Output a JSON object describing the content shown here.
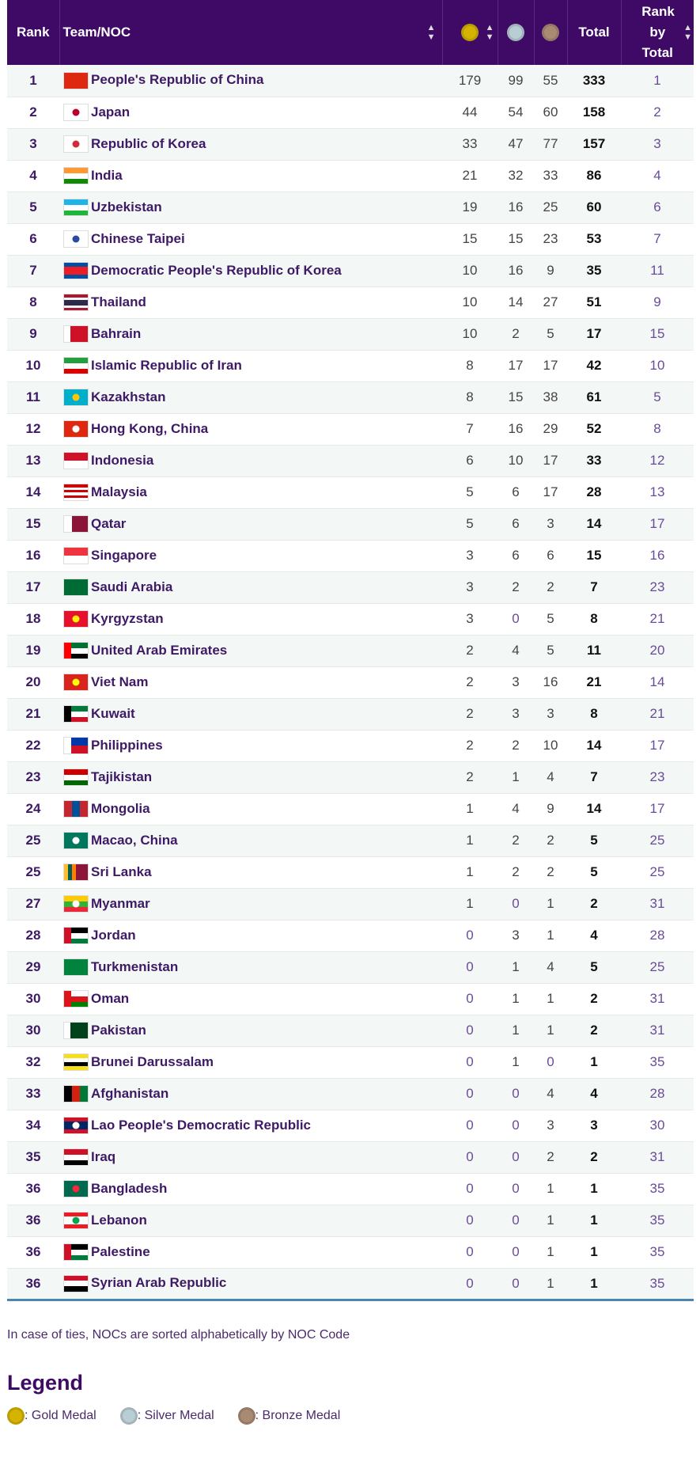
{
  "header": {
    "rank": "Rank",
    "team": "Team/NOC",
    "total": "Total",
    "rank_by_total": "Rank by Total",
    "medal_icons": [
      "gold-medal-icon",
      "silver-medal-icon",
      "bronze-medal-icon"
    ]
  },
  "colors": {
    "header_bg": "#3e0a66",
    "gold": "#d4b400",
    "silver": "#b9cdd4",
    "bronze": "#a98a72",
    "bottom_border": "#4a86b0"
  },
  "rows": [
    {
      "rank": "1",
      "team": "People's Republic of China",
      "gold": "179",
      "silver": "99",
      "bronze": "55",
      "total": "333",
      "rank_by_total": "1",
      "flag": {
        "dir": "h",
        "colors": [
          "#de2910"
        ]
      }
    },
    {
      "rank": "2",
      "team": "Japan",
      "gold": "44",
      "silver": "54",
      "bronze": "60",
      "total": "158",
      "rank_by_total": "2",
      "flag": {
        "dir": "h",
        "colors": [
          "#ffffff"
        ],
        "dot": "#bc002d"
      }
    },
    {
      "rank": "3",
      "team": "Republic of Korea",
      "gold": "33",
      "silver": "47",
      "bronze": "77",
      "total": "157",
      "rank_by_total": "3",
      "flag": {
        "dir": "h",
        "colors": [
          "#ffffff"
        ],
        "dot": "#cd2e3a"
      }
    },
    {
      "rank": "4",
      "team": "India",
      "gold": "21",
      "silver": "32",
      "bronze": "33",
      "total": "86",
      "rank_by_total": "4",
      "flag": {
        "dir": "h",
        "colors": [
          "#ff9933",
          "#ffffff",
          "#138808"
        ]
      }
    },
    {
      "rank": "5",
      "team": "Uzbekistan",
      "gold": "19",
      "silver": "16",
      "bronze": "25",
      "total": "60",
      "rank_by_total": "6",
      "flag": {
        "dir": "h",
        "colors": [
          "#1eb5e6",
          "#ffffff",
          "#1eb53a"
        ]
      }
    },
    {
      "rank": "6",
      "team": "Chinese Taipei",
      "gold": "15",
      "silver": "15",
      "bronze": "23",
      "total": "53",
      "rank_by_total": "7",
      "flag": {
        "dir": "h",
        "colors": [
          "#ffffff"
        ],
        "dot": "#2a4aa0"
      }
    },
    {
      "rank": "7",
      "team": "Democratic People's Republic of Korea",
      "gold": "10",
      "silver": "16",
      "bronze": "9",
      "total": "35",
      "rank_by_total": "11",
      "flag": {
        "dir": "h",
        "colors": [
          "#024fa2",
          "#ed1c27",
          "#ed1c27",
          "#024fa2"
        ]
      }
    },
    {
      "rank": "8",
      "team": "Thailand",
      "gold": "10",
      "silver": "14",
      "bronze": "27",
      "total": "51",
      "rank_by_total": "9",
      "flag": {
        "dir": "h",
        "colors": [
          "#a51931",
          "#f4f5f8",
          "#2d2a4a",
          "#2d2a4a",
          "#f4f5f8",
          "#a51931"
        ]
      }
    },
    {
      "rank": "9",
      "team": "Bahrain",
      "gold": "10",
      "silver": "2",
      "bronze": "5",
      "total": "17",
      "rank_by_total": "15",
      "flag": {
        "dir": "v",
        "colors": [
          "#ffffff",
          "#ce1126",
          "#ce1126",
          "#ce1126"
        ]
      }
    },
    {
      "rank": "10",
      "team": "Islamic Republic of Iran",
      "gold": "8",
      "silver": "17",
      "bronze": "17",
      "total": "42",
      "rank_by_total": "10",
      "flag": {
        "dir": "h",
        "colors": [
          "#239f40",
          "#ffffff",
          "#da0000"
        ]
      }
    },
    {
      "rank": "11",
      "team": "Kazakhstan",
      "gold": "8",
      "silver": "15",
      "bronze": "38",
      "total": "61",
      "rank_by_total": "5",
      "flag": {
        "dir": "h",
        "colors": [
          "#00afca"
        ],
        "dot": "#fec50c"
      }
    },
    {
      "rank": "12",
      "team": "Hong Kong, China",
      "gold": "7",
      "silver": "16",
      "bronze": "29",
      "total": "52",
      "rank_by_total": "8",
      "flag": {
        "dir": "h",
        "colors": [
          "#de2910"
        ],
        "dot": "#ffffff"
      }
    },
    {
      "rank": "13",
      "team": "Indonesia",
      "gold": "6",
      "silver": "10",
      "bronze": "17",
      "total": "33",
      "rank_by_total": "12",
      "flag": {
        "dir": "h",
        "colors": [
          "#ce1126",
          "#ffffff"
        ]
      }
    },
    {
      "rank": "14",
      "team": "Malaysia",
      "gold": "5",
      "silver": "6",
      "bronze": "17",
      "total": "28",
      "rank_by_total": "13",
      "flag": {
        "dir": "h",
        "colors": [
          "#cc0001",
          "#ffffff",
          "#cc0001",
          "#ffffff",
          "#cc0001",
          "#ffffff"
        ]
      }
    },
    {
      "rank": "15",
      "team": "Qatar",
      "gold": "5",
      "silver": "6",
      "bronze": "3",
      "total": "14",
      "rank_by_total": "17",
      "flag": {
        "dir": "v",
        "colors": [
          "#ffffff",
          "#8a1538",
          "#8a1538"
        ]
      }
    },
    {
      "rank": "16",
      "team": "Singapore",
      "gold": "3",
      "silver": "6",
      "bronze": "6",
      "total": "15",
      "rank_by_total": "16",
      "flag": {
        "dir": "h",
        "colors": [
          "#ef3340",
          "#ffffff"
        ]
      }
    },
    {
      "rank": "17",
      "team": "Saudi Arabia",
      "gold": "3",
      "silver": "2",
      "bronze": "2",
      "total": "7",
      "rank_by_total": "23",
      "flag": {
        "dir": "h",
        "colors": [
          "#006c35"
        ]
      }
    },
    {
      "rank": "18",
      "team": "Kyrgyzstan",
      "gold": "3",
      "silver": "0",
      "bronze": "5",
      "total": "8",
      "rank_by_total": "21",
      "flag": {
        "dir": "h",
        "colors": [
          "#e8112d"
        ],
        "dot": "#ffef00"
      }
    },
    {
      "rank": "19",
      "team": "United Arab Emirates",
      "gold": "2",
      "silver": "4",
      "bronze": "5",
      "total": "11",
      "rank_by_total": "20",
      "flag": {
        "dir": "h",
        "colors": [
          "#00732f",
          "#ffffff",
          "#000000"
        ],
        "hoist": "#ff0000"
      }
    },
    {
      "rank": "20",
      "team": "Viet Nam",
      "gold": "2",
      "silver": "3",
      "bronze": "16",
      "total": "21",
      "rank_by_total": "14",
      "flag": {
        "dir": "h",
        "colors": [
          "#da251d"
        ],
        "dot": "#ffff00"
      }
    },
    {
      "rank": "21",
      "team": "Kuwait",
      "gold": "2",
      "silver": "3",
      "bronze": "3",
      "total": "8",
      "rank_by_total": "21",
      "flag": {
        "dir": "h",
        "colors": [
          "#007a3d",
          "#ffffff",
          "#ce1126"
        ],
        "hoist": "#000000"
      }
    },
    {
      "rank": "22",
      "team": "Philippines",
      "gold": "2",
      "silver": "2",
      "bronze": "10",
      "total": "14",
      "rank_by_total": "17",
      "flag": {
        "dir": "h",
        "colors": [
          "#0038a8",
          "#ce1126"
        ],
        "hoist": "#ffffff"
      }
    },
    {
      "rank": "23",
      "team": "Tajikistan",
      "gold": "2",
      "silver": "1",
      "bronze": "4",
      "total": "7",
      "rank_by_total": "23",
      "flag": {
        "dir": "h",
        "colors": [
          "#cc0000",
          "#ffffff",
          "#006600"
        ]
      }
    },
    {
      "rank": "24",
      "team": "Mongolia",
      "gold": "1",
      "silver": "4",
      "bronze": "9",
      "total": "14",
      "rank_by_total": "17",
      "flag": {
        "dir": "v",
        "colors": [
          "#c4272f",
          "#015197",
          "#c4272f"
        ]
      }
    },
    {
      "rank": "25",
      "team": "Macao, China",
      "gold": "1",
      "silver": "2",
      "bronze": "2",
      "total": "5",
      "rank_by_total": "25",
      "flag": {
        "dir": "h",
        "colors": [
          "#00785e"
        ],
        "dot": "#ffffff"
      }
    },
    {
      "rank": "25",
      "team": "Sri Lanka",
      "gold": "1",
      "silver": "2",
      "bronze": "2",
      "total": "5",
      "rank_by_total": "25",
      "flag": {
        "dir": "v",
        "colors": [
          "#ffbe29",
          "#005f56",
          "#ff7f00",
          "#8d153a",
          "#8d153a",
          "#8d153a"
        ]
      }
    },
    {
      "rank": "27",
      "team": "Myanmar",
      "gold": "1",
      "silver": "0",
      "bronze": "1",
      "total": "2",
      "rank_by_total": "31",
      "flag": {
        "dir": "h",
        "colors": [
          "#fecb00",
          "#34b233",
          "#ea2839"
        ],
        "dot": "#ffffff"
      }
    },
    {
      "rank": "28",
      "team": "Jordan",
      "gold": "0",
      "silver": "3",
      "bronze": "1",
      "total": "4",
      "rank_by_total": "28",
      "flag": {
        "dir": "h",
        "colors": [
          "#000000",
          "#ffffff",
          "#007a3d"
        ],
        "hoist": "#ce1126"
      }
    },
    {
      "rank": "29",
      "team": "Turkmenistan",
      "gold": "0",
      "silver": "1",
      "bronze": "4",
      "total": "5",
      "rank_by_total": "25",
      "flag": {
        "dir": "h",
        "colors": [
          "#00843d"
        ]
      }
    },
    {
      "rank": "30",
      "team": "Oman",
      "gold": "0",
      "silver": "1",
      "bronze": "1",
      "total": "2",
      "rank_by_total": "31",
      "flag": {
        "dir": "h",
        "colors": [
          "#ffffff",
          "#db161b",
          "#008000"
        ],
        "hoist": "#db161b"
      }
    },
    {
      "rank": "30",
      "team": "Pakistan",
      "gold": "0",
      "silver": "1",
      "bronze": "1",
      "total": "2",
      "rank_by_total": "31",
      "flag": {
        "dir": "v",
        "colors": [
          "#ffffff",
          "#01411c",
          "#01411c",
          "#01411c"
        ]
      }
    },
    {
      "rank": "32",
      "team": "Brunei Darussalam",
      "gold": "0",
      "silver": "1",
      "bronze": "0",
      "total": "1",
      "rank_by_total": "35",
      "flag": {
        "dir": "h",
        "colors": [
          "#f7e017",
          "#ffffff",
          "#000000",
          "#f7e017"
        ]
      }
    },
    {
      "rank": "33",
      "team": "Afghanistan",
      "gold": "0",
      "silver": "0",
      "bronze": "4",
      "total": "4",
      "rank_by_total": "28",
      "flag": {
        "dir": "v",
        "colors": [
          "#000000",
          "#d32011",
          "#007a36"
        ]
      }
    },
    {
      "rank": "34",
      "team": "Lao People's Democratic Republic",
      "gold": "0",
      "silver": "0",
      "bronze": "3",
      "total": "3",
      "rank_by_total": "30",
      "flag": {
        "dir": "h",
        "colors": [
          "#ce1126",
          "#002868",
          "#002868",
          "#ce1126"
        ],
        "dot": "#ffffff"
      }
    },
    {
      "rank": "35",
      "team": "Iraq",
      "gold": "0",
      "silver": "0",
      "bronze": "2",
      "total": "2",
      "rank_by_total": "31",
      "flag": {
        "dir": "h",
        "colors": [
          "#ce1126",
          "#ffffff",
          "#000000"
        ]
      }
    },
    {
      "rank": "36",
      "team": "Bangladesh",
      "gold": "0",
      "silver": "0",
      "bronze": "1",
      "total": "1",
      "rank_by_total": "35",
      "flag": {
        "dir": "h",
        "colors": [
          "#006a4e"
        ],
        "dot": "#f42a41"
      }
    },
    {
      "rank": "36",
      "team": "Lebanon",
      "gold": "0",
      "silver": "0",
      "bronze": "1",
      "total": "1",
      "rank_by_total": "35",
      "flag": {
        "dir": "h",
        "colors": [
          "#ed1c24",
          "#ffffff",
          "#ffffff",
          "#ed1c24"
        ],
        "dot": "#00a651"
      }
    },
    {
      "rank": "36",
      "team": "Palestine",
      "gold": "0",
      "silver": "0",
      "bronze": "1",
      "total": "1",
      "rank_by_total": "35",
      "flag": {
        "dir": "h",
        "colors": [
          "#000000",
          "#ffffff",
          "#007a3d"
        ],
        "hoist": "#ce1126"
      }
    },
    {
      "rank": "36",
      "team": "Syrian Arab Republic",
      "gold": "0",
      "silver": "0",
      "bronze": "1",
      "total": "1",
      "rank_by_total": "35",
      "flag": {
        "dir": "h",
        "colors": [
          "#ce1126",
          "#ffffff",
          "#000000"
        ]
      }
    }
  ],
  "note": "In case of ties, NOCs are sorted alphabetically by NOC Code",
  "legend": {
    "title": "Legend",
    "items": [
      {
        "icon": "gold-medal-icon",
        "label": ": Gold Medal"
      },
      {
        "icon": "silver-medal-icon",
        "label": ": Silver Medal"
      },
      {
        "icon": "bronze-medal-icon",
        "label": ": Bronze Medal"
      }
    ]
  }
}
